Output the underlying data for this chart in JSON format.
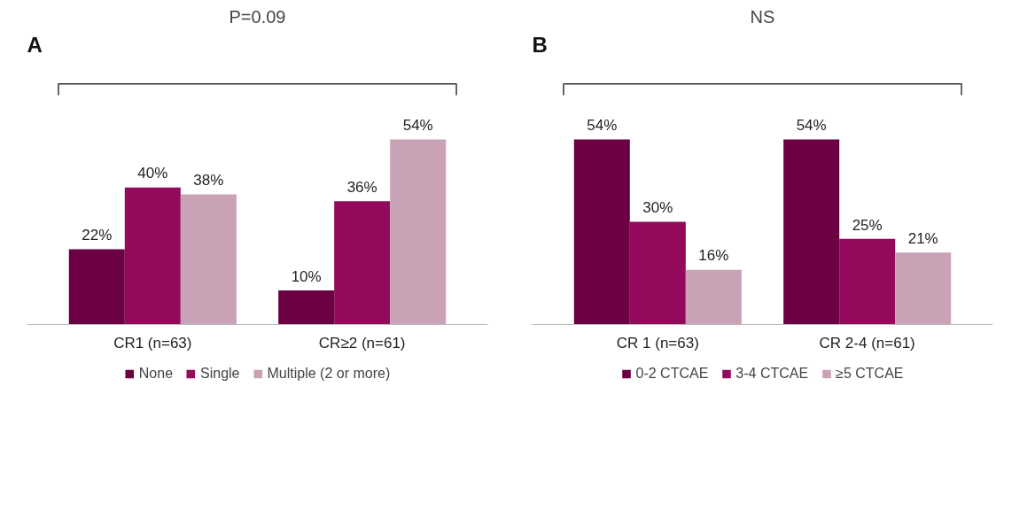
{
  "chart_data": [
    {
      "type": "bar",
      "title": "P=0.09",
      "annotations": [
        "A"
      ],
      "categories": [
        "CR1 (n=63)",
        "CR≥2 (n=61)"
      ],
      "tick_labels": "x",
      "legend": "bottom",
      "grid": false,
      "series": [
        {
          "name": "None",
          "color": "#6b0042",
          "values": [
            22,
            10
          ],
          "value_labels": [
            "22%",
            "10%"
          ]
        },
        {
          "name": "Single",
          "color": "#930a5c",
          "values": [
            40,
            36
          ],
          "value_labels": [
            "40%",
            "36%"
          ]
        },
        {
          "name": "Multiple (2 or more)",
          "color": "#c9a3b5",
          "values": [
            38,
            54
          ],
          "value_labels": [
            "38%",
            "54%"
          ]
        }
      ]
    },
    {
      "type": "bar",
      "title": "NS",
      "annotations": [
        "B"
      ],
      "categories": [
        "CR 1 (n=63)",
        "CR 2-4 (n=61)"
      ],
      "tick_labels": "x",
      "legend": "bottom",
      "grid": false,
      "series": [
        {
          "name": "0-2 CTCAE",
          "color": "#6b0042",
          "values": [
            54,
            54
          ],
          "value_labels": [
            "54%",
            "54%"
          ]
        },
        {
          "name": "3-4 CTCAE",
          "color": "#930a5c",
          "values": [
            30,
            25
          ],
          "value_labels": [
            "30%",
            "25%"
          ]
        },
        {
          "name": "≥5 CTCAE",
          "color": "#c9a3b5",
          "values": [
            16,
            21
          ],
          "value_labels": [
            "16%",
            "21%"
          ]
        }
      ]
    }
  ]
}
